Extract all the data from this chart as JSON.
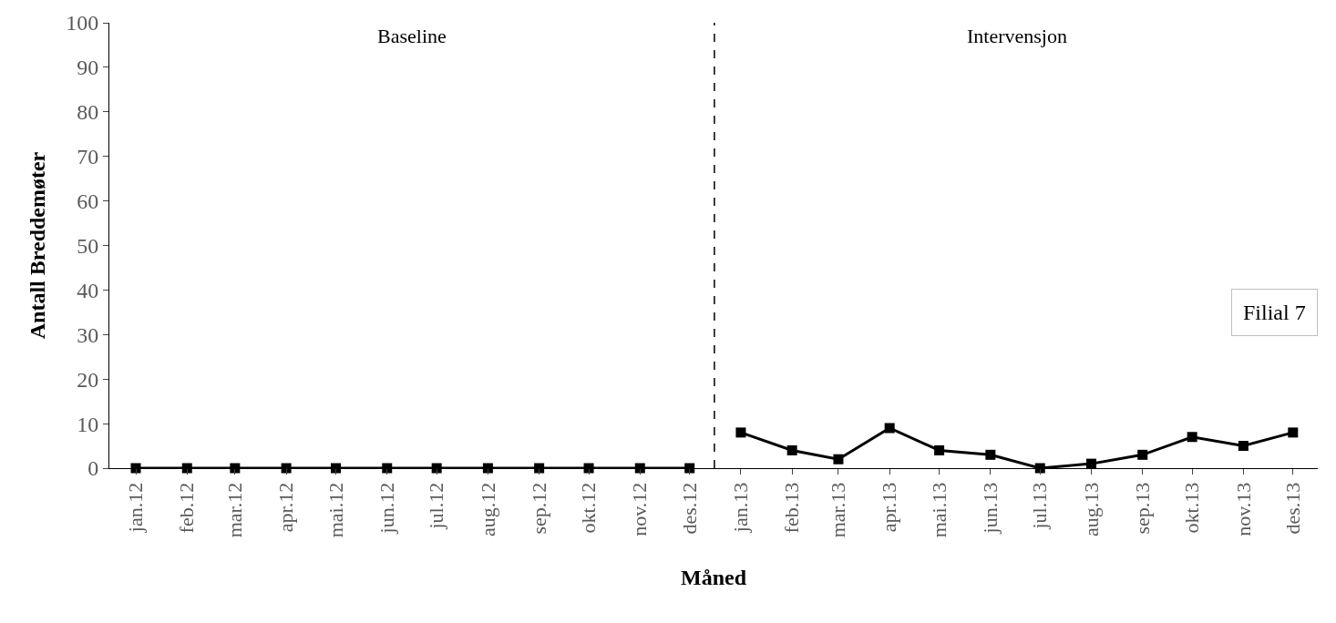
{
  "chart_data": {
    "type": "line",
    "xlabel": "Måned",
    "ylabel": "Antall Breddemøter",
    "x": [
      "2012-01",
      "2012-02",
      "2012-03",
      "2012-04",
      "2012-05",
      "2012-06",
      "2012-07",
      "2012-08",
      "2012-09",
      "2012-10",
      "2012-11",
      "2012-12",
      "2013-01",
      "2013-02",
      "2013-03",
      "2013-04",
      "2013-05",
      "2013-06",
      "2013-07",
      "2013-08",
      "2013-09",
      "2013-10",
      "2013-11",
      "2013-12"
    ],
    "xlim": [
      "2011-12-16",
      "2013-12-16"
    ],
    "xticks": [
      {
        "value": "2012-01",
        "label": "jan.12"
      },
      {
        "value": "2012-02",
        "label": "feb.12"
      },
      {
        "value": "2012-03",
        "label": "mar.12"
      },
      {
        "value": "2012-04",
        "label": "apr.12"
      },
      {
        "value": "2012-05",
        "label": "mai.12"
      },
      {
        "value": "2012-06",
        "label": "jun.12"
      },
      {
        "value": "2012-07",
        "label": "jul.12"
      },
      {
        "value": "2012-08",
        "label": "aug.12"
      },
      {
        "value": "2012-09",
        "label": "sep.12"
      },
      {
        "value": "2012-10",
        "label": "okt.12"
      },
      {
        "value": "2012-11",
        "label": "nov.12"
      },
      {
        "value": "2012-12",
        "label": "des.12"
      },
      {
        "value": "2013-01",
        "label": "jan.13"
      },
      {
        "value": "2013-02",
        "label": "feb.13"
      },
      {
        "value": "2013-03",
        "label": "mar.13"
      },
      {
        "value": "2013-04",
        "label": "apr.13"
      },
      {
        "value": "2013-05",
        "label": "mai.13"
      },
      {
        "value": "2013-06",
        "label": "jun.13"
      },
      {
        "value": "2013-07",
        "label": "jul.13"
      },
      {
        "value": "2013-08",
        "label": "aug.13"
      },
      {
        "value": "2013-09",
        "label": "sep.13"
      },
      {
        "value": "2013-10",
        "label": "okt.13"
      },
      {
        "value": "2013-11",
        "label": "nov.13"
      },
      {
        "value": "2013-12",
        "label": "des.13"
      }
    ],
    "series": [
      {
        "color": "#000000",
        "values": [
          0,
          0,
          0,
          0,
          0,
          0,
          0,
          0,
          0,
          0,
          0,
          0,
          null,
          null,
          null,
          null,
          null,
          null,
          null,
          null,
          null,
          null,
          null,
          null
        ]
      },
      {
        "color": "#000000",
        "values": [
          null,
          null,
          null,
          null,
          null,
          null,
          null,
          null,
          null,
          null,
          null,
          null,
          8,
          4,
          2,
          9,
          4,
          3,
          0,
          1,
          3,
          7,
          5,
          8
        ]
      }
    ],
    "ylim": [
      0,
      100
    ],
    "yticks": [
      0,
      10,
      20,
      30,
      40,
      50,
      60,
      70,
      80,
      90,
      100
    ],
    "ref_lines": [
      {
        "axis": "x",
        "value": "2012-12-16",
        "color": "#000000",
        "line_style": "dashed"
      }
    ],
    "annotations": [
      "Baseline",
      "Intervensjon",
      "Filial 7"
    ],
    "marker": "square",
    "line_style": "solid"
  }
}
